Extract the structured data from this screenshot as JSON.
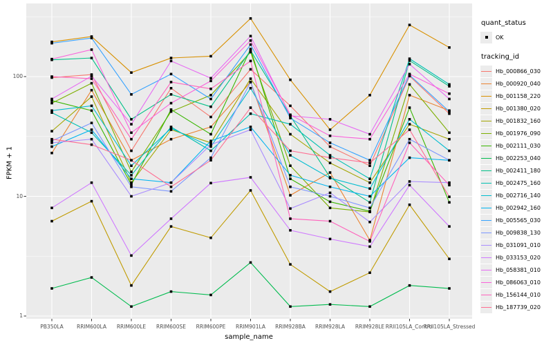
{
  "labels": {
    "y_title": "FPKM + 1",
    "x_title": "sample_name",
    "legend_quant_title": "quant_status",
    "legend_ok": "OK",
    "legend_tracking_title": "tracking_id"
  },
  "style": {
    "panel_bg": "#EBEBEB",
    "grid_color": "#FFFFFF",
    "tick_text_color": "#4D4D4D",
    "point_color": "#000000",
    "legend_key_bg": "#ECECEC"
  },
  "chart_data": {
    "type": "line",
    "title": "",
    "xlabel": "sample_name",
    "ylabel": "FPKM + 1",
    "y_scale": "log10",
    "ylim": [
      1,
      380
    ],
    "y_ticks": [
      1,
      10,
      100
    ],
    "grid": true,
    "legend_position": "right",
    "point_marker": "filled-square",
    "quant_status_values": [
      "OK"
    ],
    "x_categories": [
      "PB350LA",
      "RRIM600LA",
      "RRIM600LE",
      "RRIM600SE",
      "RRIM600PE",
      "RRIM901LA",
      "RRIM928BA",
      "RRIM928LA",
      "RRIM928LE",
      "RRII105LA_Control",
      "RRII105LA_Stressed"
    ],
    "series": [
      {
        "name": "Hb_000866_030",
        "color": "#F8766D",
        "values": [
          98,
          104,
          24,
          80,
          46,
          115,
          57,
          26,
          18,
          101,
          49
        ]
      },
      {
        "name": "Hb_000920_040",
        "color": "#EA8331",
        "values": [
          23,
          77,
          20,
          30,
          38,
          90,
          10.2,
          15.8,
          4.3,
          70,
          52
        ]
      },
      {
        "name": "Hb_001158_220",
        "color": "#D89000",
        "values": [
          195,
          216,
          108,
          143,
          148,
          306,
          94,
          36,
          70,
          270,
          175
        ]
      },
      {
        "name": "Hb_001380_020",
        "color": "#C09B00",
        "values": [
          6.2,
          9.1,
          1.8,
          5.6,
          4.5,
          11.2,
          2.7,
          1.6,
          2.3,
          8.5,
          3.0
        ]
      },
      {
        "name": "Hb_001832_160",
        "color": "#A3A500",
        "values": [
          35,
          68,
          13,
          36,
          28,
          96,
          33,
          19,
          13,
          40,
          30
        ]
      },
      {
        "name": "Hb_001976_090",
        "color": "#7CAE00",
        "values": [
          60,
          88,
          16,
          51,
          70,
          160,
          18,
          8,
          7.4,
          86,
          34
        ]
      },
      {
        "name": "Hb_002111_030",
        "color": "#39B600",
        "values": [
          63,
          52,
          12.5,
          53,
          33,
          170,
          14,
          9,
          7.5,
          55,
          8.9
        ]
      },
      {
        "name": "Hb_002253_040",
        "color": "#00BB4E",
        "values": [
          1.7,
          2.1,
          1.2,
          1.6,
          1.5,
          2.8,
          1.2,
          1.25,
          1.2,
          1.8,
          1.7
        ]
      },
      {
        "name": "Hb_002411_180",
        "color": "#00C087",
        "values": [
          138,
          143,
          44,
          71,
          56,
          165,
          47,
          14.4,
          8.9,
          136,
          83
        ]
      },
      {
        "name": "Hb_002475_160",
        "color": "#00C0B2",
        "values": [
          50,
          34,
          15,
          38,
          24,
          49,
          40,
          22,
          14,
          141,
          86
        ]
      },
      {
        "name": "Hb_002716_140",
        "color": "#00BDD0",
        "values": [
          52,
          57,
          18,
          37,
          26,
          80,
          22,
          14.2,
          11.6,
          44,
          24
        ]
      },
      {
        "name": "Hb_002942_160",
        "color": "#00B4F0",
        "values": [
          26,
          36,
          14,
          13,
          29,
          38,
          15,
          12,
          10,
          21,
          20
        ]
      },
      {
        "name": "Hb_005565_030",
        "color": "#35A2FF",
        "values": [
          190,
          210,
          71,
          105,
          65,
          185,
          45,
          28,
          20,
          103,
          51
        ]
      },
      {
        "name": "Hb_009838_130",
        "color": "#7C96FF",
        "values": [
          29,
          41,
          12,
          11,
          21,
          90,
          12,
          10,
          8,
          30,
          20
        ]
      },
      {
        "name": "Hb_031091_010",
        "color": "#A98CFF",
        "values": [
          28,
          30,
          10,
          13,
          27,
          36,
          7.9,
          10.7,
          6.1,
          13.3,
          13
        ]
      },
      {
        "name": "Hb_033153_020",
        "color": "#CF78FF",
        "values": [
          8,
          13,
          3.2,
          6.5,
          12.9,
          14.4,
          5.2,
          4.4,
          3.8,
          12.4,
          5.6
        ]
      },
      {
        "name": "Hb_058381_010",
        "color": "#E76BF3",
        "values": [
          65,
          101,
          40,
          135,
          97,
          218,
          47,
          44,
          33,
          127,
          65
        ]
      },
      {
        "name": "Hb_086063_010",
        "color": "#FA62DB",
        "values": [
          140,
          168,
          34,
          60,
          92,
          200,
          48,
          32,
          30,
          105,
          72
        ]
      },
      {
        "name": "Hb_156144_010",
        "color": "#FF62BC",
        "values": [
          100,
          96,
          30,
          90,
          79,
          135,
          6.5,
          6.2,
          4.2,
          28,
          12.4
        ]
      },
      {
        "name": "Hb_187739_020",
        "color": "#FF6C91",
        "values": [
          30,
          27,
          20,
          12,
          20,
          55,
          24,
          21,
          19,
          36,
          9.9
        ]
      }
    ]
  }
}
